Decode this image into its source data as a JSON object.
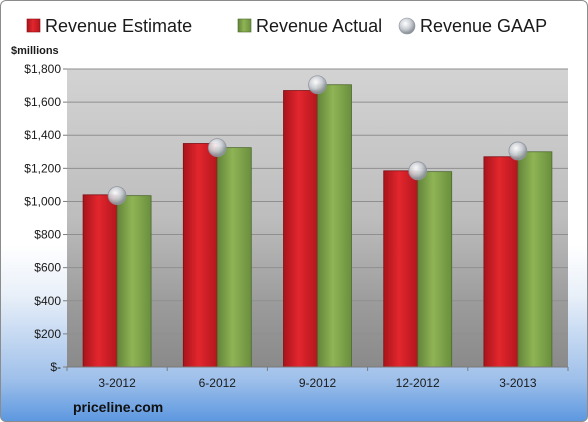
{
  "chart_data": {
    "type": "bar",
    "title": "",
    "ylabel": "$millions",
    "xlabel": "",
    "categories": [
      "3-2012",
      "6-2012",
      "9-2012",
      "12-2012",
      "3-2013"
    ],
    "series": [
      {
        "name": "Revenue Estimate",
        "kind": "bar",
        "color": "#d42128",
        "values": [
          1040,
          1350,
          1670,
          1185,
          1270
        ]
      },
      {
        "name": "Revenue Actual",
        "kind": "bar",
        "color": "#7fa347",
        "values": [
          1035,
          1325,
          1705,
          1180,
          1300
        ]
      },
      {
        "name": "Revenue GAAP",
        "kind": "marker",
        "color": "#b9bfc8",
        "values": [
          1035,
          1325,
          1705,
          1185,
          1305
        ]
      }
    ],
    "ylim": [
      0,
      1800
    ],
    "yticks": [
      0,
      200,
      400,
      600,
      800,
      1000,
      1200,
      1400,
      1600,
      1800
    ],
    "ytick_labels": [
      "$-",
      "$200",
      "$400",
      "$600",
      "$800",
      "$1,000",
      "$1,200",
      "$1,400",
      "$1,600",
      "$1,800"
    ],
    "grid": true,
    "legend_position": "top"
  },
  "brand": "priceline.com"
}
